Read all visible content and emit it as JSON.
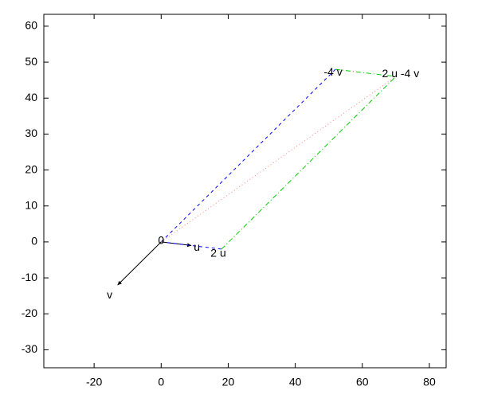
{
  "chart_data": {
    "type": "vector",
    "xlim": [
      -35,
      85
    ],
    "ylim": [
      -35,
      63.3
    ],
    "xticks": [
      -20,
      0,
      20,
      40,
      60,
      80
    ],
    "yticks": [
      -30,
      -20,
      -10,
      0,
      10,
      20,
      30,
      40,
      50,
      60
    ],
    "segments": [
      {
        "x": [
          0,
          9
        ],
        "y": [
          0,
          -1
        ],
        "color": "#000000",
        "dash": "solid",
        "arrow": true
      },
      {
        "x": [
          0,
          -13
        ],
        "y": [
          0,
          -12
        ],
        "color": "#000000",
        "dash": "solid",
        "arrow": true
      },
      {
        "x": [
          0,
          18
        ],
        "y": [
          0,
          -2
        ],
        "color": "#0000ff",
        "dash": "dashed",
        "arrow": false
      },
      {
        "x": [
          0,
          52
        ],
        "y": [
          0,
          48
        ],
        "color": "#0000ff",
        "dash": "dashed",
        "arrow": false
      },
      {
        "x": [
          18,
          70
        ],
        "y": [
          -2,
          46
        ],
        "color": "#00cc00",
        "dash": "dashdot",
        "arrow": false
      },
      {
        "x": [
          52,
          70
        ],
        "y": [
          48,
          46
        ],
        "color": "#00cc00",
        "dash": "dashdot",
        "arrow": false
      },
      {
        "x": [
          0,
          70
        ],
        "y": [
          0,
          46
        ],
        "color": "#ff8080",
        "dash": "dotted",
        "arrow": false
      }
    ],
    "labels": [
      {
        "text": "0",
        "x": 0,
        "y": 0
      },
      {
        "text": "u",
        "x": 9,
        "y": -1
      },
      {
        "text": "v",
        "x": -13,
        "y": -12
      },
      {
        "text": "2 u",
        "x": 18,
        "y": -2
      },
      {
        "text": "-4 v",
        "x": 52,
        "y": 48
      },
      {
        "text": "2 u -4 v",
        "x": 70,
        "y": 46
      }
    ]
  }
}
